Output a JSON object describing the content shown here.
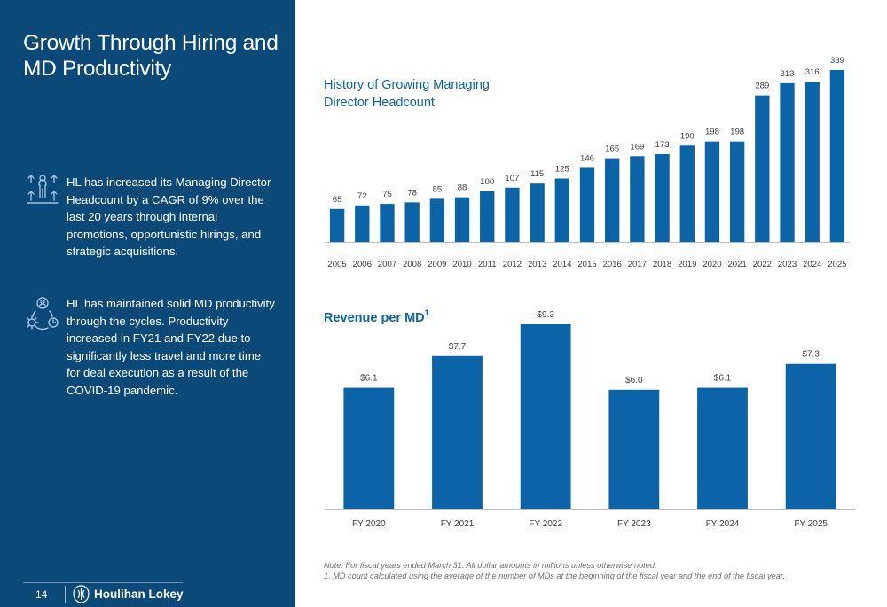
{
  "page": {
    "title": "Growth Through Hiring and MD Productivity",
    "page_number": "14",
    "logo_text": "Houlihan Lokey"
  },
  "bullets": [
    {
      "icon": "people-growth-icon",
      "text": "HL has increased its Managing Director Headcount by a CAGR of 9% over the last 20 years through internal promotions, opportunistic hirings, and strategic acquisitions."
    },
    {
      "icon": "productivity-cycle-icon",
      "text": "HL has maintained solid MD productivity through the cycles. Productivity increased in FY21 and FY22 due to significantly less travel and more time for deal execution as a result of the COVID-19 pandemic."
    }
  ],
  "colors": {
    "panel": "#0b4a78",
    "bar": "#0b64a8",
    "title_accent": "#0b64a8",
    "axis": "#bfbfbf"
  },
  "notes": {
    "line1": "Note: For fiscal years ended March 31. All dollar amounts in millions unless otherwise noted.",
    "line2": "1. MD count calculated using the average of the number of MDs at the beginning of the fiscal year and the end of the fiscal year."
  },
  "chart_data": [
    {
      "type": "bar",
      "title": "History of Growing Managing Director Headcount",
      "categories": [
        "2005",
        "2006",
        "2007",
        "2008",
        "2009",
        "2010",
        "2011",
        "2012",
        "2013",
        "2014",
        "2015",
        "2016",
        "2017",
        "2018",
        "2019",
        "2020",
        "2021",
        "2022",
        "2023",
        "2024",
        "2025"
      ],
      "values": [
        65,
        72,
        75,
        78,
        85,
        88,
        100,
        107,
        115,
        125,
        146,
        165,
        169,
        173,
        190,
        198,
        198,
        289,
        313,
        316,
        339
      ],
      "labels": [
        "65",
        "72",
        "75",
        "78",
        "85",
        "88",
        "100",
        "107",
        "115",
        "125",
        "146",
        "165",
        "169",
        "173",
        "190",
        "198",
        "198",
        "289",
        "313",
        "316",
        "339"
      ],
      "xlabel": "",
      "ylabel": "",
      "ylim": [
        0,
        339
      ],
      "grid": false
    },
    {
      "type": "bar",
      "title": "Revenue per MD",
      "title_superscript": "1",
      "categories": [
        "FY 2020",
        "FY 2021",
        "FY 2022",
        "FY 2023",
        "FY 2024",
        "FY 2025"
      ],
      "values": [
        6.1,
        7.7,
        9.3,
        6.0,
        6.1,
        7.3
      ],
      "labels": [
        "$6.1",
        "$7.7",
        "$9.3",
        "$6.0",
        "$6.1",
        "$7.3"
      ],
      "xlabel": "",
      "ylabel": "",
      "ylim": [
        0,
        9.3
      ],
      "grid": false
    }
  ]
}
